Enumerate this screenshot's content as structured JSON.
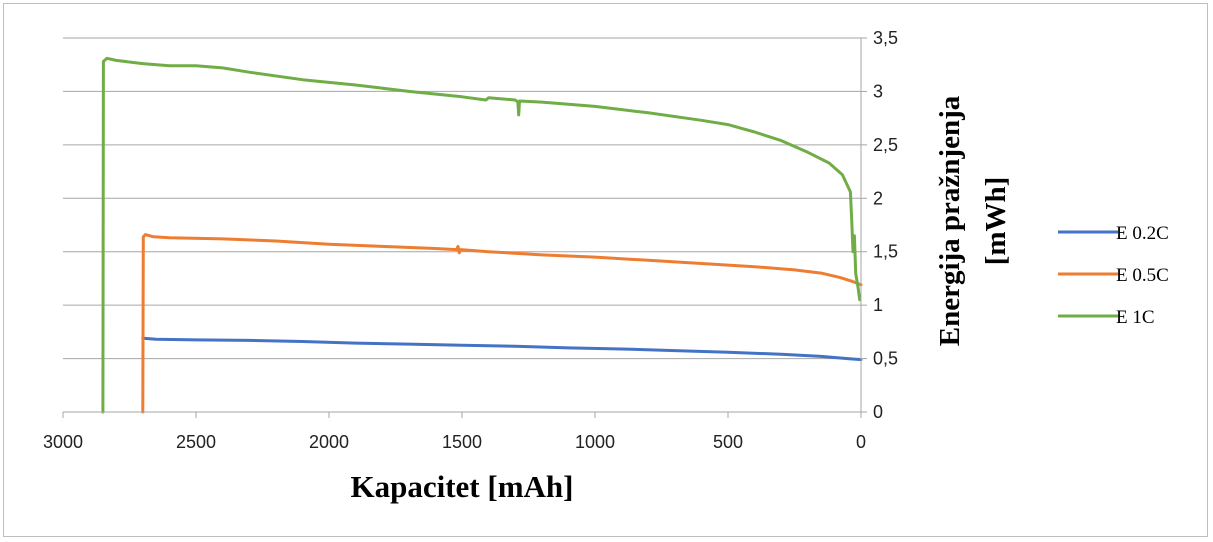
{
  "chart_data": {
    "type": "line",
    "title": "",
    "xlabel": "Kapacitet [mAh]",
    "ylabel_line1": "Energija pražnjenja",
    "ylabel_line2": "[mWh]",
    "x_reversed": true,
    "xlim": [
      0,
      3000
    ],
    "ylim": [
      0,
      3.5
    ],
    "x_ticks": [
      {
        "value": 3000,
        "label": "3000"
      },
      {
        "value": 2500,
        "label": "2500"
      },
      {
        "value": 2000,
        "label": "2000"
      },
      {
        "value": 1500,
        "label": "1500"
      },
      {
        "value": 1000,
        "label": "1000"
      },
      {
        "value": 500,
        "label": "500"
      },
      {
        "value": 0,
        "label": "0"
      }
    ],
    "y_ticks": [
      {
        "value": 0,
        "label": "0"
      },
      {
        "value": 0.5,
        "label": "0,5"
      },
      {
        "value": 1,
        "label": "1"
      },
      {
        "value": 1.5,
        "label": "1,5"
      },
      {
        "value": 2,
        "label": "2"
      },
      {
        "value": 2.5,
        "label": "2,5"
      },
      {
        "value": 3,
        "label": "3"
      },
      {
        "value": 3.5,
        "label": "3,5"
      }
    ],
    "grid": "horizontal",
    "legend_position": "right",
    "series": [
      {
        "name": "E 0.2C",
        "color": "#4472C4",
        "points": [
          [
            2700,
            0.69
          ],
          [
            2650,
            0.68
          ],
          [
            2500,
            0.675
          ],
          [
            2300,
            0.67
          ],
          [
            2100,
            0.66
          ],
          [
            1900,
            0.645
          ],
          [
            1700,
            0.635
          ],
          [
            1500,
            0.625
          ],
          [
            1300,
            0.615
          ],
          [
            1100,
            0.6
          ],
          [
            900,
            0.59
          ],
          [
            700,
            0.575
          ],
          [
            500,
            0.56
          ],
          [
            300,
            0.54
          ],
          [
            150,
            0.52
          ],
          [
            50,
            0.5
          ],
          [
            0,
            0.49
          ]
        ]
      },
      {
        "name": "E 0.5C",
        "color": "#ED7D31",
        "points": [
          [
            2700,
            0.0
          ],
          [
            2698,
            1.64
          ],
          [
            2690,
            1.66
          ],
          [
            2660,
            1.64
          ],
          [
            2600,
            1.63
          ],
          [
            2400,
            1.62
          ],
          [
            2200,
            1.6
          ],
          [
            2000,
            1.57
          ],
          [
            1800,
            1.55
          ],
          [
            1600,
            1.53
          ],
          [
            1520,
            1.52
          ],
          [
            1515,
            1.55
          ],
          [
            1510,
            1.49
          ],
          [
            1505,
            1.52
          ],
          [
            1400,
            1.5
          ],
          [
            1200,
            1.47
          ],
          [
            1000,
            1.45
          ],
          [
            800,
            1.42
          ],
          [
            600,
            1.39
          ],
          [
            400,
            1.36
          ],
          [
            250,
            1.33
          ],
          [
            150,
            1.3
          ],
          [
            80,
            1.26
          ],
          [
            30,
            1.22
          ],
          [
            0,
            1.19
          ]
        ]
      },
      {
        "name": "E 1C",
        "color": "#70AD47",
        "points": [
          [
            2850,
            0.0
          ],
          [
            2848,
            3.28
          ],
          [
            2835,
            3.31
          ],
          [
            2800,
            3.29
          ],
          [
            2700,
            3.26
          ],
          [
            2600,
            3.24
          ],
          [
            2500,
            3.24
          ],
          [
            2400,
            3.22
          ],
          [
            2300,
            3.18
          ],
          [
            2100,
            3.11
          ],
          [
            1900,
            3.06
          ],
          [
            1700,
            3.0
          ],
          [
            1500,
            2.95
          ],
          [
            1410,
            2.92
          ],
          [
            1400,
            2.94
          ],
          [
            1300,
            2.92
          ],
          [
            1290,
            2.9
          ],
          [
            1287,
            2.78
          ],
          [
            1284,
            2.91
          ],
          [
            1200,
            2.9
          ],
          [
            1000,
            2.86
          ],
          [
            800,
            2.8
          ],
          [
            600,
            2.73
          ],
          [
            500,
            2.69
          ],
          [
            400,
            2.62
          ],
          [
            300,
            2.54
          ],
          [
            200,
            2.43
          ],
          [
            120,
            2.33
          ],
          [
            70,
            2.22
          ],
          [
            40,
            2.06
          ],
          [
            35,
            1.8
          ],
          [
            30,
            1.5
          ],
          [
            25,
            1.65
          ],
          [
            20,
            1.3
          ],
          [
            10,
            1.15
          ],
          [
            5,
            1.05
          ]
        ]
      }
    ]
  }
}
